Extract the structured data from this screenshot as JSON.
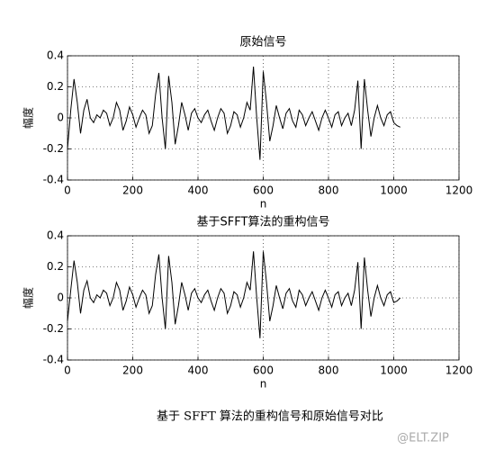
{
  "chart_data": [
    {
      "type": "line",
      "title": "原始信号",
      "xlabel": "n",
      "ylabel": "幅度",
      "color": "#000000",
      "xlim": [
        0,
        1200
      ],
      "xticks": [
        0,
        200,
        400,
        600,
        800,
        1000,
        1200
      ],
      "ylim": [
        -0.4,
        0.4
      ],
      "yticks": [
        -0.4,
        -0.2,
        0,
        0.2,
        0.4
      ],
      "grid": true,
      "x": [
        0,
        10,
        20,
        30,
        40,
        50,
        60,
        70,
        80,
        90,
        100,
        110,
        120,
        130,
        140,
        150,
        160,
        170,
        180,
        190,
        200,
        210,
        220,
        230,
        240,
        250,
        260,
        270,
        280,
        290,
        300,
        310,
        320,
        330,
        340,
        350,
        360,
        370,
        380,
        390,
        400,
        410,
        420,
        430,
        440,
        450,
        460,
        470,
        480,
        490,
        500,
        510,
        520,
        530,
        540,
        550,
        560,
        570,
        580,
        590,
        600,
        610,
        620,
        630,
        640,
        650,
        660,
        670,
        680,
        690,
        700,
        710,
        720,
        730,
        740,
        750,
        760,
        770,
        780,
        790,
        800,
        810,
        820,
        830,
        840,
        850,
        860,
        870,
        880,
        890,
        900,
        910,
        920,
        930,
        940,
        950,
        960,
        970,
        980,
        990,
        1000,
        1010,
        1020
      ],
      "values": [
        -0.2,
        0.05,
        0.25,
        0.1,
        -0.1,
        0.05,
        0.12,
        0.0,
        -0.03,
        0.02,
        0.0,
        0.05,
        0.03,
        -0.05,
        0.0,
        0.1,
        0.05,
        -0.08,
        -0.02,
        0.07,
        0.02,
        -0.06,
        0.0,
        0.05,
        0.02,
        -0.1,
        -0.05,
        0.15,
        0.29,
        0.0,
        -0.2,
        0.27,
        0.1,
        -0.17,
        -0.05,
        0.1,
        0.02,
        -0.08,
        0.03,
        0.06,
        0.0,
        -0.03,
        0.02,
        0.05,
        -0.02,
        -0.08,
        0.0,
        0.06,
        0.03,
        -0.1,
        -0.05,
        0.04,
        0.02,
        -0.06,
        0.0,
        0.1,
        0.05,
        0.33,
        0.0,
        -0.27,
        0.3,
        0.1,
        -0.15,
        -0.05,
        0.08,
        0.0,
        -0.07,
        0.03,
        0.06,
        -0.02,
        -0.06,
        0.05,
        0.02,
        -0.05,
        0.0,
        0.04,
        -0.02,
        -0.08,
        0.0,
        0.05,
        0.0,
        -0.06,
        0.02,
        0.04,
        -0.05,
        0.0,
        0.03,
        -0.05,
        0.05,
        0.24,
        -0.2,
        0.25,
        0.05,
        -0.12,
        0.0,
        0.08,
        0.0,
        -0.05,
        0.02,
        0.04,
        -0.03,
        -0.05,
        -0.06
      ]
    },
    {
      "type": "line",
      "title": "基于SFFT算法的重构信号",
      "xlabel": "n",
      "ylabel": "幅度",
      "color": "#000000",
      "xlim": [
        0,
        1200
      ],
      "xticks": [
        0,
        200,
        400,
        600,
        800,
        1000,
        1200
      ],
      "ylim": [
        -0.4,
        0.4
      ],
      "yticks": [
        -0.4,
        -0.2,
        0,
        0.2,
        0.4
      ],
      "grid": true,
      "x": [
        0,
        10,
        20,
        30,
        40,
        50,
        60,
        70,
        80,
        90,
        100,
        110,
        120,
        130,
        140,
        150,
        160,
        170,
        180,
        190,
        200,
        210,
        220,
        230,
        240,
        250,
        260,
        270,
        280,
        290,
        300,
        310,
        320,
        330,
        340,
        350,
        360,
        370,
        380,
        390,
        400,
        410,
        420,
        430,
        440,
        450,
        460,
        470,
        480,
        490,
        500,
        510,
        520,
        530,
        540,
        550,
        560,
        570,
        580,
        590,
        600,
        610,
        620,
        630,
        640,
        650,
        660,
        670,
        680,
        690,
        700,
        710,
        720,
        730,
        740,
        750,
        760,
        770,
        780,
        790,
        800,
        810,
        820,
        830,
        840,
        850,
        860,
        870,
        880,
        890,
        900,
        910,
        920,
        930,
        940,
        950,
        960,
        970,
        980,
        990,
        1000,
        1010,
        1020
      ],
      "values": [
        -0.15,
        0.05,
        0.24,
        0.1,
        -0.1,
        0.05,
        0.11,
        0.0,
        -0.03,
        0.02,
        0.0,
        0.05,
        0.03,
        -0.05,
        0.0,
        0.1,
        0.05,
        -0.08,
        -0.02,
        0.07,
        0.02,
        -0.06,
        0.0,
        0.05,
        0.02,
        -0.1,
        -0.05,
        0.15,
        0.28,
        0.0,
        -0.2,
        0.27,
        0.1,
        -0.17,
        -0.05,
        0.1,
        0.02,
        -0.08,
        0.03,
        0.06,
        0.0,
        -0.03,
        0.02,
        0.05,
        -0.02,
        -0.08,
        0.0,
        0.06,
        0.03,
        -0.1,
        -0.05,
        0.04,
        0.02,
        -0.06,
        0.0,
        0.1,
        0.05,
        0.3,
        0.0,
        -0.26,
        0.3,
        0.1,
        -0.15,
        -0.05,
        0.08,
        0.0,
        -0.07,
        0.03,
        0.06,
        -0.02,
        -0.06,
        0.05,
        0.02,
        -0.05,
        0.0,
        0.04,
        -0.02,
        -0.08,
        0.0,
        0.05,
        0.0,
        -0.06,
        0.02,
        0.04,
        -0.05,
        0.0,
        0.03,
        -0.05,
        0.05,
        0.23,
        -0.2,
        0.26,
        0.05,
        -0.12,
        0.0,
        0.08,
        0.0,
        -0.05,
        0.02,
        0.04,
        -0.03,
        -0.02,
        0.0
      ]
    }
  ],
  "caption": "基于 SFFT 算法的重构信号和原始信号对比",
  "watermark": "@ELT.ZIP"
}
